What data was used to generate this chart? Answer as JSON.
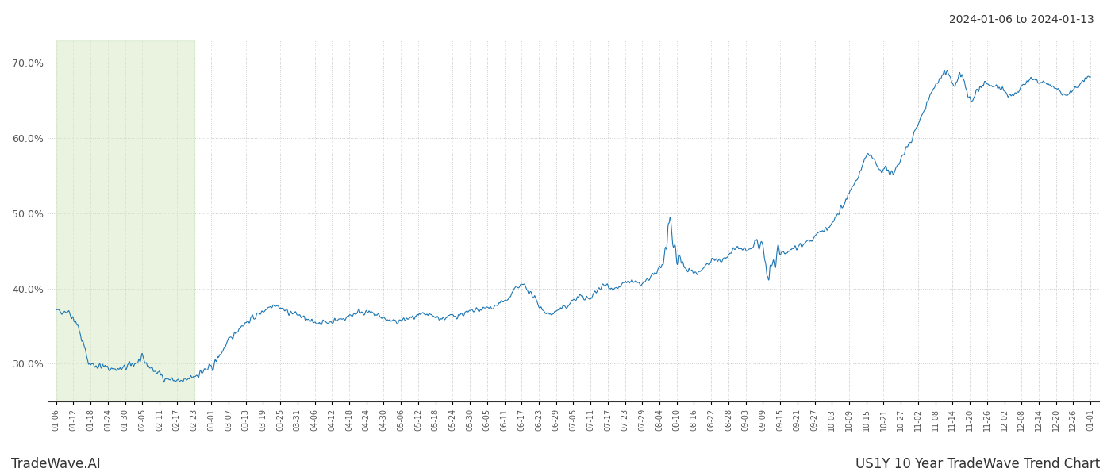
{
  "title_top_right": "2024-01-06 to 2024-01-13",
  "bottom_left": "TradeWave.AI",
  "bottom_right": "US1Y 10 Year TradeWave Trend Chart",
  "line_color": "#1f77b4",
  "background_color": "#ffffff",
  "grid_color": "#cccccc",
  "highlight_color": "#d4e8c2",
  "ylim": [
    25.0,
    73.0
  ],
  "yticks": [
    30.0,
    40.0,
    50.0,
    60.0,
    70.0
  ],
  "highlight_xstart": 0.0,
  "highlight_xend": 8.0,
  "x_labels": [
    "01-06",
    "01-12",
    "01-18",
    "01-24",
    "01-30",
    "02-05",
    "02-11",
    "02-17",
    "02-23",
    "03-01",
    "03-07",
    "03-13",
    "03-19",
    "03-25",
    "03-31",
    "04-06",
    "04-12",
    "04-18",
    "04-24",
    "04-30",
    "05-06",
    "05-12",
    "05-18",
    "05-24",
    "05-30",
    "06-05",
    "06-11",
    "06-17",
    "06-23",
    "06-29",
    "07-05",
    "07-11",
    "07-17",
    "07-23",
    "07-29",
    "08-04",
    "08-10",
    "08-16",
    "08-22",
    "08-28",
    "09-03",
    "09-09",
    "09-15",
    "09-21",
    "09-27",
    "10-03",
    "10-09",
    "10-15",
    "10-21",
    "10-27",
    "11-02",
    "11-08",
    "11-14",
    "11-20",
    "11-26",
    "12-02",
    "12-08",
    "12-14",
    "12-20",
    "12-26",
    "01-01"
  ]
}
